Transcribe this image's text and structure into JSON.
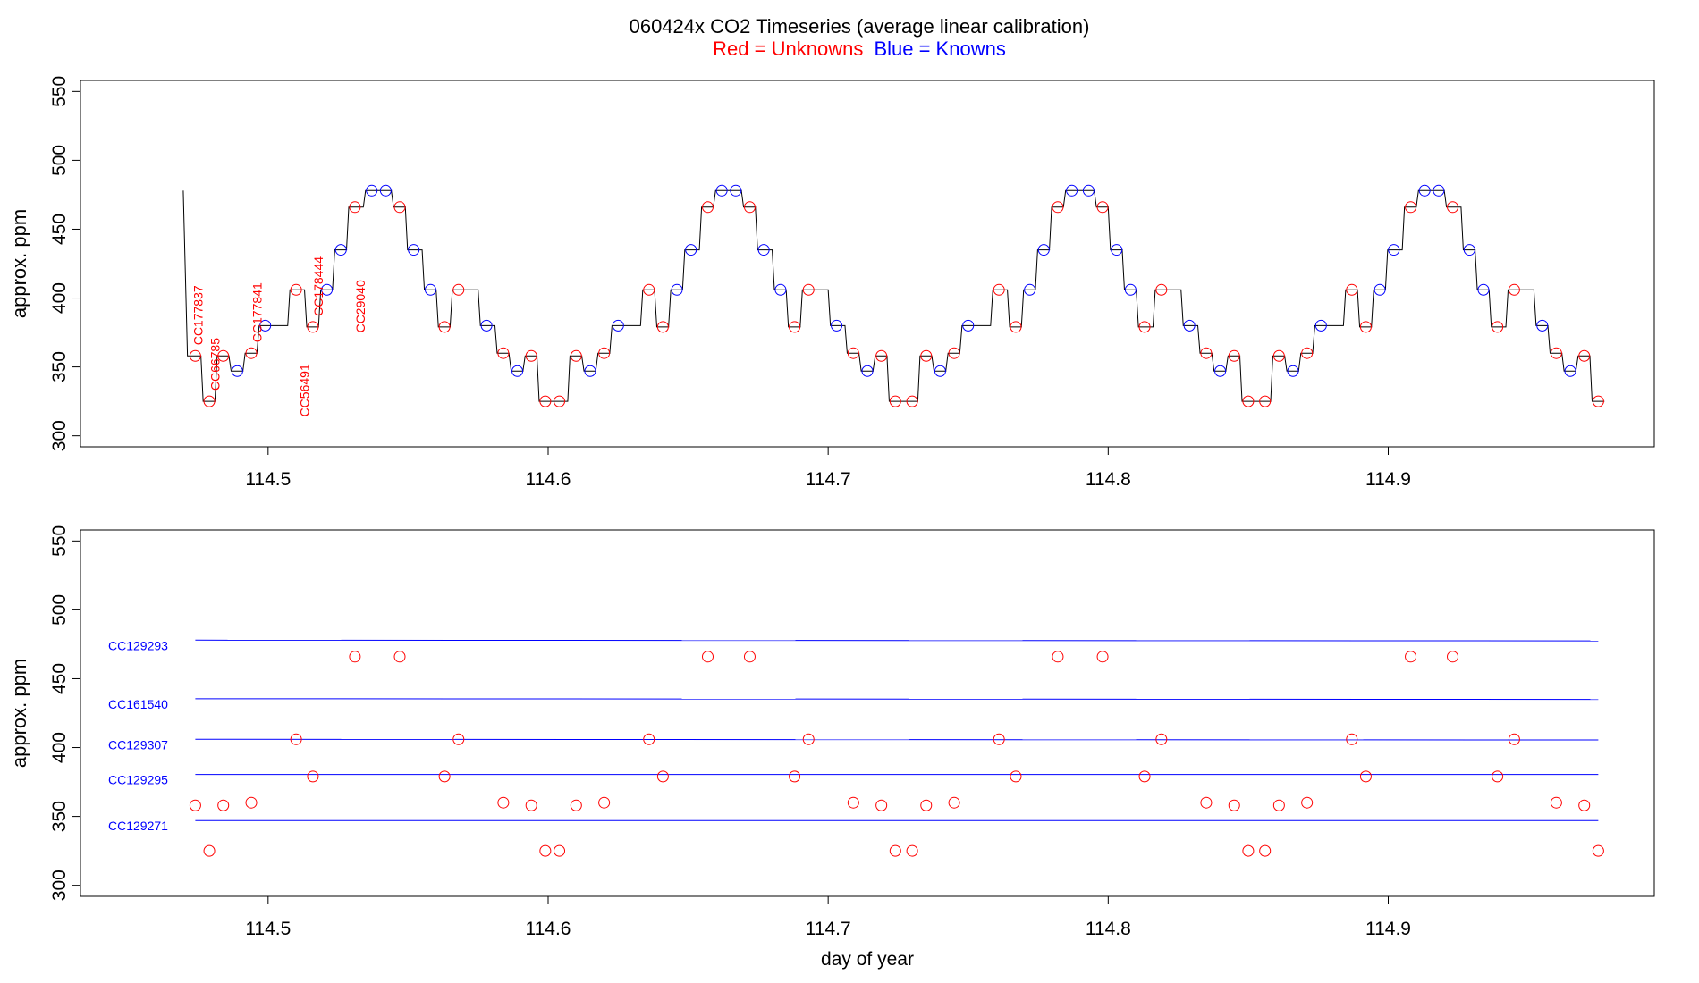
{
  "header": {
    "title": "060424x   CO2 Timeseries (average linear calibration)",
    "legend_red": "Red = Unknowns",
    "legend_blue": "Blue = Knowns"
  },
  "colors": {
    "unknown": "#ff0000",
    "known": "#0000ff",
    "line": "#000000",
    "axis": "#000000"
  },
  "chart_data": [
    {
      "type": "line",
      "subtype": "step timeseries with sample markers",
      "xlabel": "",
      "ylabel": "approx. ppm",
      "xlim": [
        114.433,
        114.995
      ],
      "ylim": [
        292,
        558
      ],
      "xticks": [
        114.5,
        114.6,
        114.7,
        114.8,
        114.9
      ],
      "xtick_labels": [
        "114.5",
        "114.6",
        "114.7",
        "114.8",
        "114.9"
      ],
      "yticks": [
        300,
        350,
        400,
        450,
        500,
        550
      ],
      "ytick_labels": [
        "300",
        "350",
        "400",
        "450",
        "500",
        "550"
      ],
      "grid": false,
      "series": [
        {
          "kind": "unknown",
          "x": [
            114.474,
            114.479,
            114.484,
            114.494,
            114.51,
            114.516,
            114.531,
            114.547,
            114.563,
            114.568,
            114.584,
            114.594,
            114.599,
            114.604,
            114.61,
            114.62,
            114.636,
            114.641,
            114.657,
            114.672,
            114.688,
            114.693,
            114.709,
            114.719,
            114.724,
            114.73,
            114.735,
            114.745,
            114.761,
            114.767,
            114.782,
            114.798,
            114.813,
            114.819,
            114.835,
            114.845,
            114.85,
            114.856,
            114.861,
            114.871,
            114.887,
            114.892,
            114.908,
            114.923,
            114.939,
            114.945,
            114.96,
            114.97,
            114.975
          ],
          "y": [
            358,
            325,
            358,
            360,
            406,
            379,
            466,
            466,
            379,
            406,
            360,
            358,
            325,
            325,
            358,
            360,
            406,
            379,
            466,
            466,
            379,
            406,
            360,
            358,
            325,
            325,
            358,
            360,
            406,
            379,
            466,
            466,
            379,
            406,
            360,
            358,
            325,
            325,
            358,
            360,
            406,
            379,
            466,
            466,
            379,
            406,
            360,
            358,
            325
          ]
        },
        {
          "kind": "known",
          "x": [
            114.489,
            114.499,
            114.521,
            114.526,
            114.537,
            114.542,
            114.552,
            114.558,
            114.578,
            114.589,
            114.615,
            114.625,
            114.646,
            114.651,
            114.662,
            114.667,
            114.677,
            114.683,
            114.703,
            114.714,
            114.74,
            114.75,
            114.772,
            114.777,
            114.787,
            114.793,
            114.803,
            114.808,
            114.829,
            114.84,
            114.866,
            114.876,
            114.897,
            114.902,
            114.913,
            114.918,
            114.929,
            114.934,
            114.955,
            114.965
          ],
          "y": [
            347,
            380,
            406,
            435,
            478,
            478,
            435,
            406,
            380,
            347,
            347,
            380,
            406,
            435,
            478,
            478,
            435,
            406,
            380,
            347,
            347,
            380,
            406,
            435,
            478,
            478,
            435,
            406,
            380,
            347,
            347,
            380,
            406,
            435,
            478,
            478,
            435,
            406,
            380,
            347
          ]
        }
      ],
      "annotations": [
        {
          "text": "CC177837",
          "x": 114.475,
          "y": 358,
          "color": "unknown"
        },
        {
          "text": "CC66785",
          "x": 114.481,
          "y": 325,
          "color": "unknown"
        },
        {
          "text": "CC177841",
          "x": 114.496,
          "y": 360,
          "color": "unknown"
        },
        {
          "text": "CC56491",
          "x": 114.513,
          "y": 306,
          "color": "unknown"
        },
        {
          "text": "CC178444",
          "x": 114.518,
          "y": 379,
          "color": "unknown"
        },
        {
          "text": "CC29040",
          "x": 114.533,
          "y": 367,
          "color": "unknown"
        }
      ]
    },
    {
      "type": "scatter",
      "xlabel": "day of year",
      "ylabel": "approx. ppm",
      "xlim": [
        114.433,
        114.995
      ],
      "ylim": [
        292,
        558
      ],
      "xticks": [
        114.5,
        114.6,
        114.7,
        114.8,
        114.9
      ],
      "xtick_labels": [
        "114.5",
        "114.6",
        "114.7",
        "114.8",
        "114.9"
      ],
      "yticks": [
        300,
        350,
        400,
        450,
        500,
        550
      ],
      "ytick_labels": [
        "300",
        "350",
        "400",
        "450",
        "500",
        "550"
      ],
      "grid": false,
      "reference_lines": [
        {
          "name": "CC129293",
          "y": 478,
          "y_end": 477.5
        },
        {
          "name": "CC161540",
          "y": 435.5,
          "y_end": 435
        },
        {
          "name": "CC129307",
          "y": 406,
          "y_end": 405.5
        },
        {
          "name": "CC129295",
          "y": 380.5,
          "y_end": 380.5
        },
        {
          "name": "CC129271",
          "y": 347,
          "y_end": 347
        }
      ],
      "line_x_range": [
        114.474,
        114.975
      ],
      "series": [
        {
          "kind": "unknown",
          "x": [
            114.474,
            114.479,
            114.484,
            114.494,
            114.51,
            114.516,
            114.531,
            114.547,
            114.563,
            114.568,
            114.584,
            114.594,
            114.599,
            114.604,
            114.61,
            114.62,
            114.636,
            114.641,
            114.657,
            114.672,
            114.688,
            114.693,
            114.709,
            114.719,
            114.724,
            114.73,
            114.735,
            114.745,
            114.761,
            114.767,
            114.782,
            114.798,
            114.813,
            114.819,
            114.835,
            114.845,
            114.85,
            114.856,
            114.861,
            114.871,
            114.887,
            114.892,
            114.908,
            114.923,
            114.939,
            114.945,
            114.96,
            114.97,
            114.975
          ],
          "y": [
            358,
            325,
            358,
            360,
            406,
            379,
            466,
            466,
            379,
            406,
            360,
            358,
            325,
            325,
            358,
            360,
            406,
            379,
            466,
            466,
            379,
            406,
            360,
            358,
            325,
            325,
            358,
            360,
            406,
            379,
            466,
            466,
            379,
            406,
            360,
            358,
            325,
            325,
            358,
            360,
            406,
            379,
            466,
            466,
            379,
            406,
            360,
            358,
            325
          ]
        }
      ]
    }
  ]
}
